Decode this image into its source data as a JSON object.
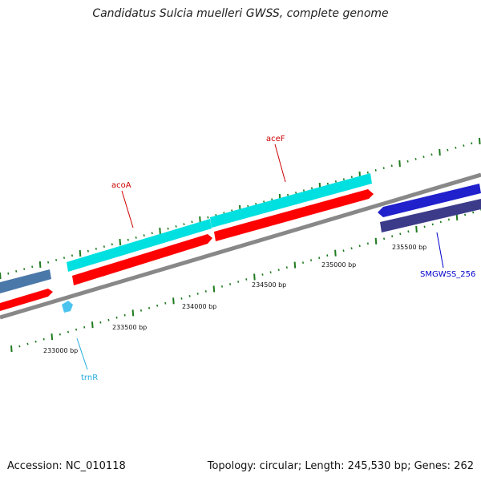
{
  "title": "Candidatus Sulcia muelleri GWSS, complete genome",
  "footer": {
    "accession": "Accession: NC_010118",
    "summary": "Topology: circular; Length: 245,530 bp; Genes: 262"
  },
  "colors": {
    "ticks": "#1f7a1f",
    "backbone": "#888888",
    "cds_forward": "#00e5e5",
    "cds_reverse": "#ff0000",
    "trna": "#4cc3ee",
    "gene_a": "#2a2acc",
    "gene_b": "#3b3b8a",
    "gene_c": "#4a78a8",
    "label_red": "#cc0000",
    "label_cyan": "#22aadd",
    "label_blue": "#0000cc"
  },
  "coordinates": {
    "labels": [
      "233000 bp",
      "233500 bp",
      "234000 bp",
      "234500 bp",
      "235000 bp",
      "235500 bp"
    ]
  },
  "features": {
    "acoA": "acoA",
    "aceF": "aceF",
    "trnR": "trnR",
    "smgwss": "SMGWSS_256"
  }
}
